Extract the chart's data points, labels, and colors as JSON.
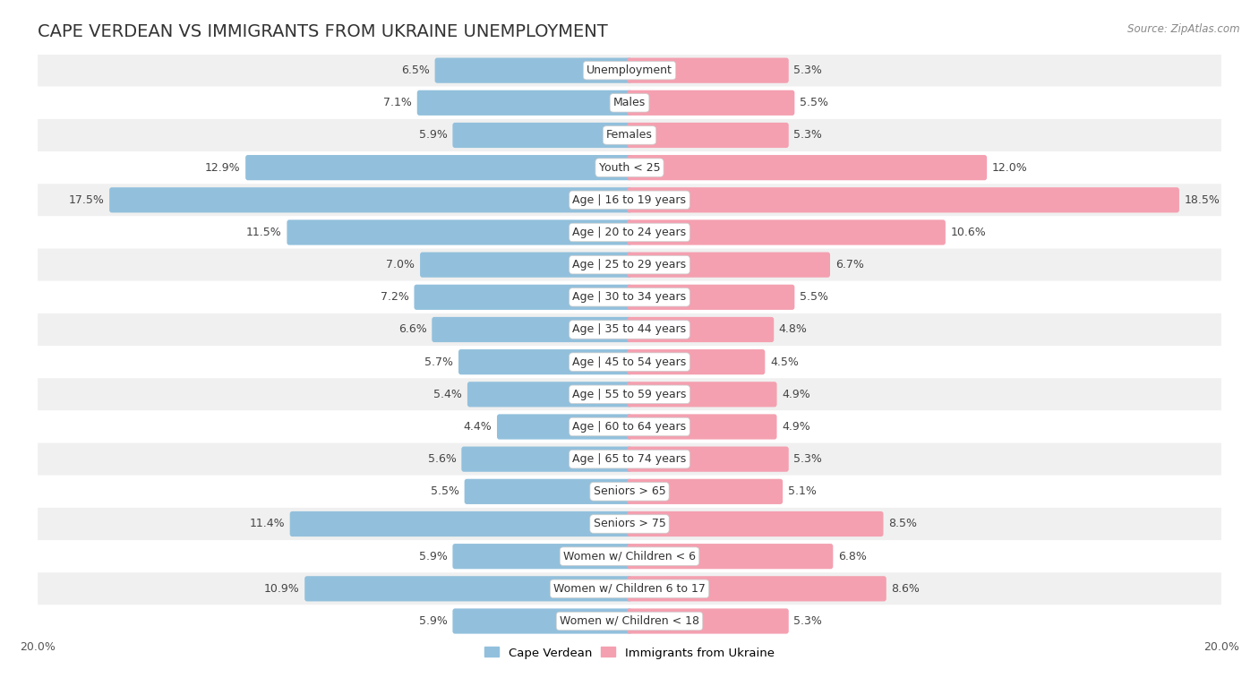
{
  "title": "CAPE VERDEAN VS IMMIGRANTS FROM UKRAINE UNEMPLOYMENT",
  "source": "Source: ZipAtlas.com",
  "categories": [
    "Unemployment",
    "Males",
    "Females",
    "Youth < 25",
    "Age | 16 to 19 years",
    "Age | 20 to 24 years",
    "Age | 25 to 29 years",
    "Age | 30 to 34 years",
    "Age | 35 to 44 years",
    "Age | 45 to 54 years",
    "Age | 55 to 59 years",
    "Age | 60 to 64 years",
    "Age | 65 to 74 years",
    "Seniors > 65",
    "Seniors > 75",
    "Women w/ Children < 6",
    "Women w/ Children 6 to 17",
    "Women w/ Children < 18"
  ],
  "cape_verdean": [
    6.5,
    7.1,
    5.9,
    12.9,
    17.5,
    11.5,
    7.0,
    7.2,
    6.6,
    5.7,
    5.4,
    4.4,
    5.6,
    5.5,
    11.4,
    5.9,
    10.9,
    5.9
  ],
  "ukraine": [
    5.3,
    5.5,
    5.3,
    12.0,
    18.5,
    10.6,
    6.7,
    5.5,
    4.8,
    4.5,
    4.9,
    4.9,
    5.3,
    5.1,
    8.5,
    6.8,
    8.6,
    5.3
  ],
  "cape_verdean_color": "#92c0dc",
  "ukraine_color": "#f4a0b0",
  "axis_max": 20.0,
  "background_color": "#ffffff",
  "row_color_light": "#f0f0f0",
  "row_color_white": "#ffffff",
  "legend_cape_verdean": "Cape Verdean",
  "legend_ukraine": "Immigrants from Ukraine",
  "title_fontsize": 14,
  "label_fontsize": 9,
  "bar_height": 0.62
}
